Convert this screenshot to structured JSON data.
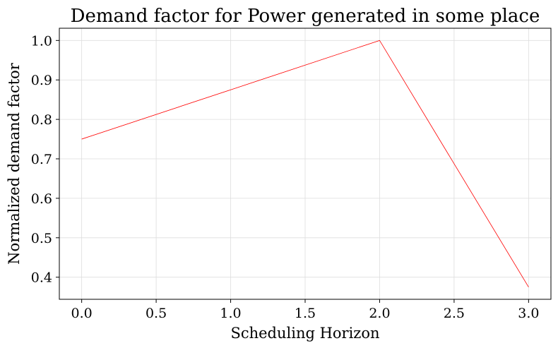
{
  "chart_data": {
    "type": "line",
    "title": "Demand factor for Power generated in some place",
    "xlabel": "Scheduling Horizon",
    "ylabel": "Normalized demand factor",
    "x": [
      0,
      1,
      2,
      3
    ],
    "series": [
      {
        "values": [
          0.75,
          0.875,
          1.0,
          0.375
        ],
        "color": "#ff0000"
      }
    ],
    "xlim": [
      -0.15,
      3.15
    ],
    "ylim": [
      0.344,
      1.031
    ],
    "xticks": [
      0.0,
      0.5,
      1.0,
      1.5,
      2.0,
      2.5,
      3.0
    ],
    "xtick_labels": [
      "0.0",
      "0.5",
      "1.0",
      "1.5",
      "2.0",
      "2.5",
      "3.0"
    ],
    "yticks": [
      0.4,
      0.5,
      0.6,
      0.7,
      0.8,
      0.9,
      1.0
    ],
    "ytick_labels": [
      "0.4",
      "0.5",
      "0.6",
      "0.7",
      "0.8",
      "0.9",
      "1.0"
    ],
    "grid": true,
    "grid_color": "#dddddd",
    "legend": false
  }
}
